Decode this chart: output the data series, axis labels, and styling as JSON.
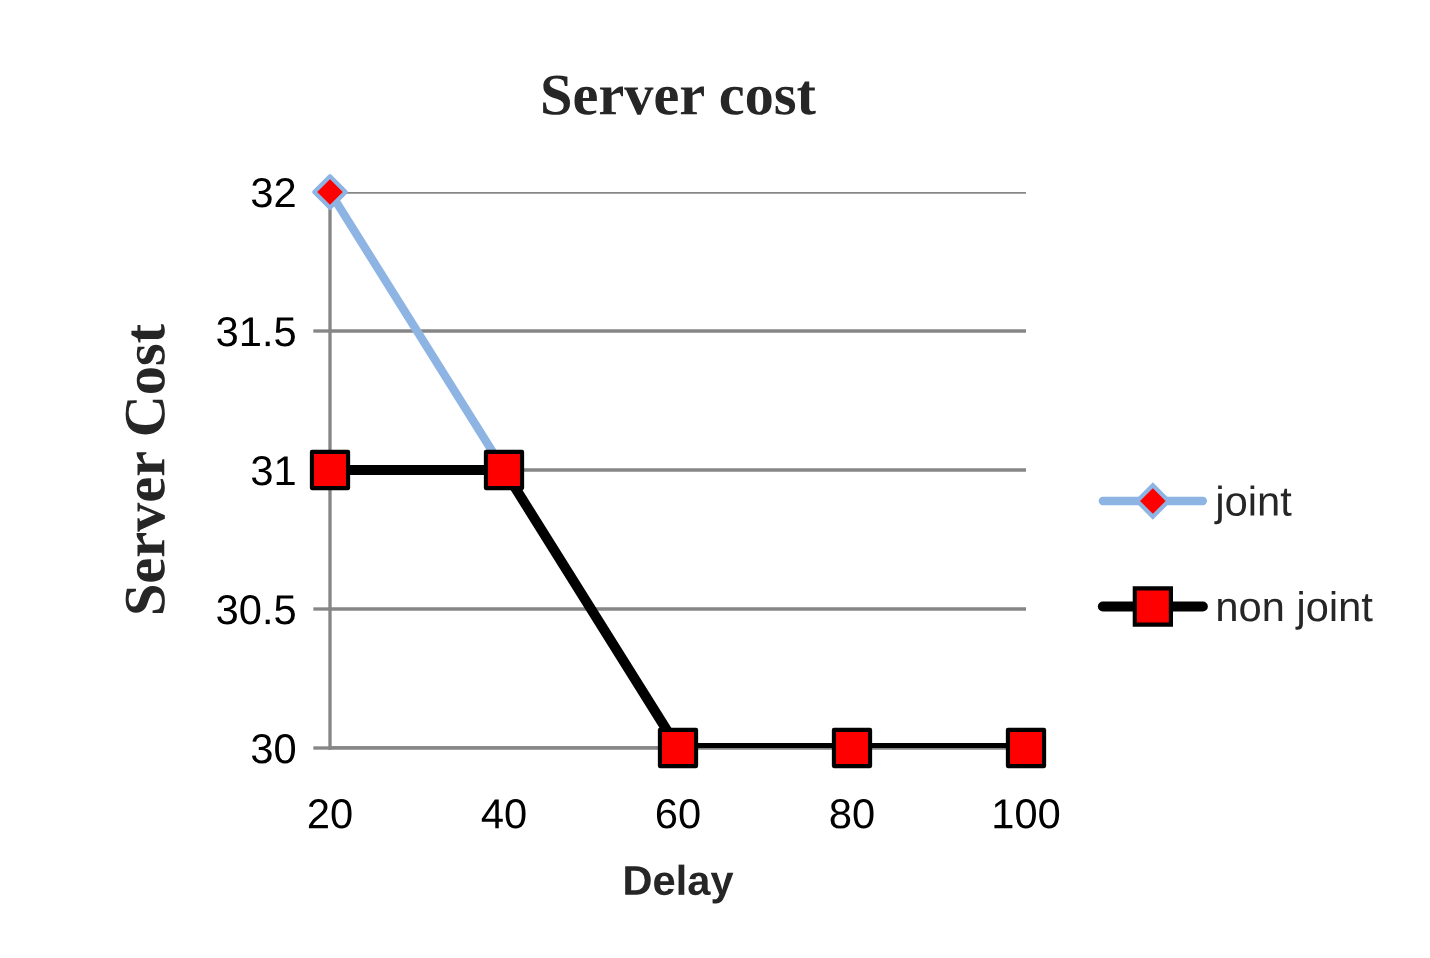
{
  "chart_data": {
    "type": "line",
    "title": "Server cost",
    "xlabel": "Delay",
    "ylabel": "Server Cost",
    "categories": [
      "20",
      "40",
      "60",
      "80",
      "100"
    ],
    "series": [
      {
        "name": "joint",
        "color": "#8db4e2",
        "marker": "diamond",
        "colors": [
          "#ff0000",
          "#ff0000",
          "#ff0000",
          "#ff0000",
          "#ff0000"
        ],
        "values": [
          32,
          31,
          null,
          null,
          null
        ]
      },
      {
        "name": "non joint",
        "color": "#000000",
        "marker": "square",
        "colors": [
          "#ff0000",
          "#ff0000",
          "#ff0000",
          "#ff0000",
          "#ff0000"
        ],
        "values": [
          31,
          31,
          30,
          30,
          30
        ]
      }
    ],
    "ylim": [
      30,
      32
    ],
    "yticks": [
      30,
      30.5,
      31,
      31.5,
      32
    ],
    "grid": "y",
    "legend": "right",
    "line_style": "solid"
  }
}
